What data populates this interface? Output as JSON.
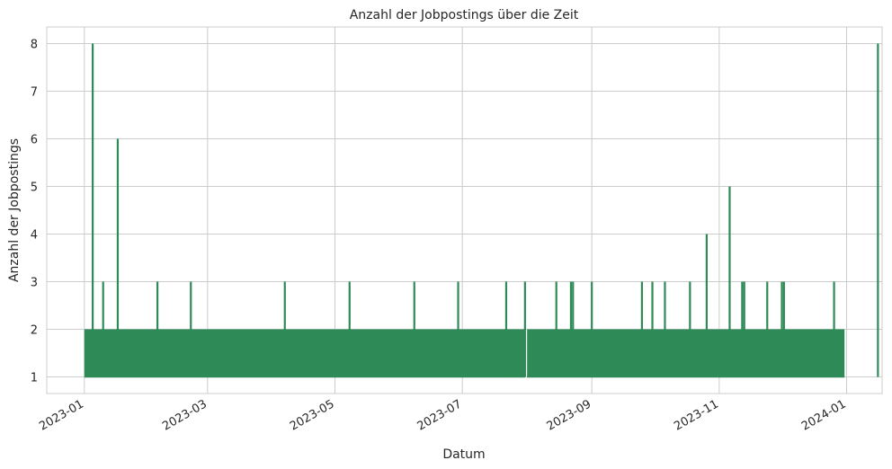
{
  "chart_data": {
    "type": "line",
    "title": "Anzahl der Jobpostings über die Zeit",
    "xlabel": "Datum",
    "ylabel": "Anzahl der Jobpostings",
    "xlim": [
      "2022-12-14",
      "2024-01-18"
    ],
    "ylim": [
      0.65,
      8.35
    ],
    "x_ticks": [
      "2023-01",
      "2023-03",
      "2023-05",
      "2023-07",
      "2023-09",
      "2023-11",
      "2024-01"
    ],
    "y_ticks": [
      1,
      2,
      3,
      4,
      5,
      6,
      7,
      8
    ],
    "grid": true,
    "line_color": "#2e8b57",
    "series": [
      {
        "dense_ranges": [
          {
            "from": "2023-01-01",
            "to": "2023-07-31",
            "baseline": 1,
            "level": 2
          },
          {
            "from": "2023-08-01",
            "to": "2023-12-31",
            "baseline": 1,
            "level": 2
          }
        ],
        "peaks": [
          {
            "x": "2023-01-05",
            "y": 8
          },
          {
            "x": "2023-01-10",
            "y": 3
          },
          {
            "x": "2023-01-17",
            "y": 6
          },
          {
            "x": "2023-02-05",
            "y": 3
          },
          {
            "x": "2023-02-21",
            "y": 3
          },
          {
            "x": "2023-04-07",
            "y": 3
          },
          {
            "x": "2023-05-08",
            "y": 3
          },
          {
            "x": "2023-06-08",
            "y": 3
          },
          {
            "x": "2023-06-29",
            "y": 3
          },
          {
            "x": "2023-07-22",
            "y": 3
          },
          {
            "x": "2023-07-31",
            "y": 3
          },
          {
            "x": "2023-08-15",
            "y": 3
          },
          {
            "x": "2023-08-22",
            "y": 3
          },
          {
            "x": "2023-08-23",
            "y": 3
          },
          {
            "x": "2023-09-01",
            "y": 3
          },
          {
            "x": "2023-09-25",
            "y": 3
          },
          {
            "x": "2023-09-30",
            "y": 3
          },
          {
            "x": "2023-10-06",
            "y": 3
          },
          {
            "x": "2023-10-18",
            "y": 3
          },
          {
            "x": "2023-10-26",
            "y": 4
          },
          {
            "x": "2023-11-06",
            "y": 5
          },
          {
            "x": "2023-11-12",
            "y": 3
          },
          {
            "x": "2023-11-13",
            "y": 3
          },
          {
            "x": "2023-11-24",
            "y": 3
          },
          {
            "x": "2023-12-01",
            "y": 3
          },
          {
            "x": "2023-12-02",
            "y": 3
          },
          {
            "x": "2023-12-26",
            "y": 3
          },
          {
            "x": "2024-01-16",
            "y": 8
          }
        ]
      }
    ]
  }
}
